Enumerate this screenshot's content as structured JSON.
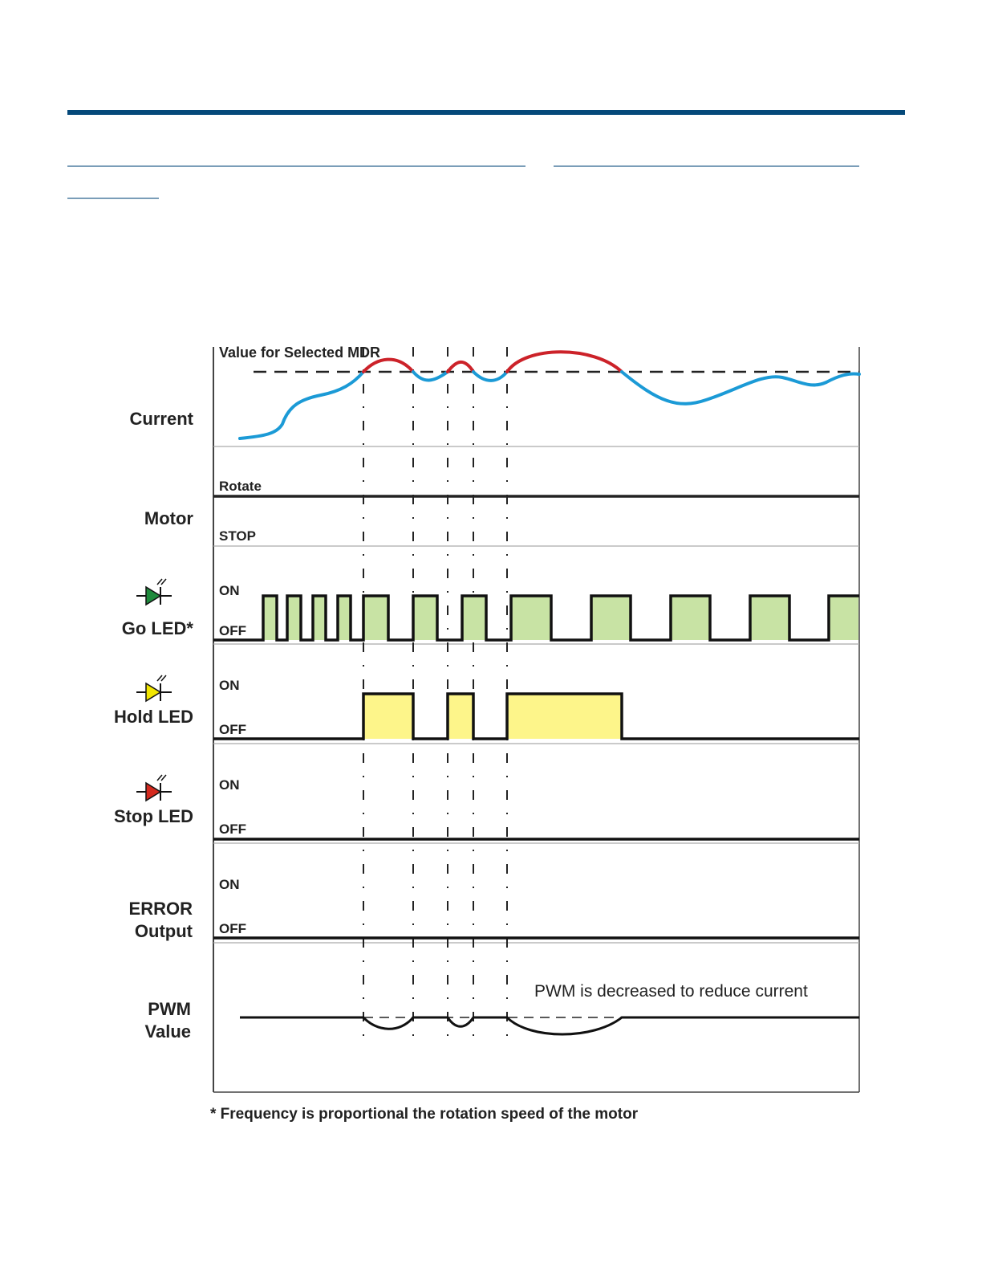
{
  "colors": {
    "header_rule": "#05497a",
    "link_rule": "#7a9db8",
    "current_normal": "#1b9ad6",
    "current_over": "#cc2229",
    "go_led": "#1e8a3c",
    "go_fill": "#c8e3a4",
    "hold_led": "#f2e600",
    "hold_fill": "#fdf58a",
    "stop_led": "#d42a1f"
  },
  "diagram": {
    "threshold_label": "Value for Selected MDR",
    "rows": {
      "current": {
        "label": "Current"
      },
      "motor": {
        "label": "Motor",
        "high": "Rotate",
        "low": "STOP"
      },
      "go_led": {
        "label": "Go LED*",
        "high": "ON",
        "low": "OFF",
        "icon": "green-led-icon"
      },
      "hold_led": {
        "label": "Hold LED",
        "high": "ON",
        "low": "OFF",
        "icon": "yellow-led-icon"
      },
      "stop_led": {
        "label": "Stop LED",
        "high": "ON",
        "low": "OFF",
        "icon": "red-led-icon"
      },
      "error": {
        "label_line1": "ERROR",
        "label_line2": "Output",
        "high": "ON",
        "low": "OFF"
      },
      "pwm": {
        "label_line1": "PWM",
        "label_line2": "Value",
        "annotation": "PWM is decreased to reduce current"
      }
    },
    "footnote": "* Frequency is proportional the rotation speed of the motor"
  }
}
